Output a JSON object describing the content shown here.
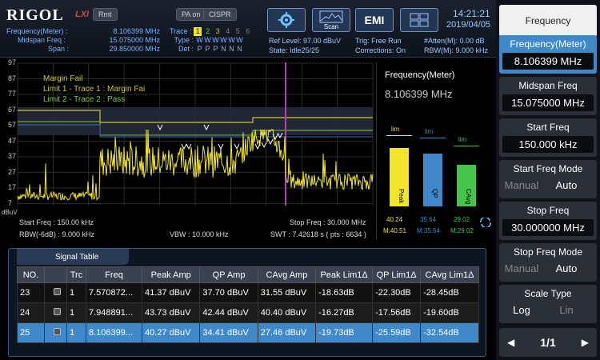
{
  "brand": {
    "name": "RIGOL",
    "sub": "LXI"
  },
  "header": {
    "rmt": "Rmt",
    "pa": "PA on",
    "cispr": "CISPR",
    "scan_label": "Scan",
    "emi_label": "EMI",
    "time": "14:21:21",
    "date": "2019/04/05"
  },
  "markers": {
    "freq_meter_label": "Frequency(Meter) :",
    "freq_meter": "8.106399 MHz",
    "midspan_label": "Midspan Freq :",
    "midspan": "15.075000 MHz",
    "span_label": "Span :",
    "span": "29.850000 MHz"
  },
  "trace": {
    "trace_label": "Trace :",
    "trace_nums": [
      "1",
      "2",
      "3",
      "4",
      "5",
      "6"
    ],
    "type_label": "Type :",
    "types": [
      "W",
      "W",
      "W",
      "W",
      "W",
      "W"
    ],
    "det_label": "Det :",
    "dets": [
      "P",
      "P",
      "P",
      "N",
      "N",
      "N"
    ]
  },
  "status": {
    "ref_level": "Ref Level: 97.00 dBuV",
    "state": "State: Idle25/25",
    "trig": "Trig: Free Run",
    "corrections": "Corrections: On",
    "atten": "#Atten(M): 0.00 dB",
    "rbw": "RBW(M): 9.000 kHz"
  },
  "plot": {
    "y_ticks": [
      "97",
      "87",
      "77",
      "67",
      "57",
      "47",
      "37",
      "27",
      "17",
      "7"
    ],
    "y_unit": "dBuV",
    "legend": [
      "Margin Fail",
      "Limit 1 - Trace 1 : Margin Fai",
      "Limit 2 - Trace 2 : Pass"
    ],
    "start_freq": "Start Freq : 150.00 kHz",
    "stop_freq": "Stop Freq : 30.000 MHz",
    "rbw": "RBW(-6dB) : 9.000 kHz",
    "vbw": "VBW : 10.000 kHz",
    "swt": "SWT : 7.42618 s ( pts : 6634 )",
    "colors": {
      "trace": "#f2e62a",
      "limit1": "#c8c830",
      "limit2": "#7ccf3a"
    }
  },
  "meter": {
    "title": "Frequency(Meter)",
    "value": "8.106399 MHz",
    "bars": [
      {
        "name": "Peak",
        "value": "40.24",
        "max": "M:40.51",
        "level": 0.52,
        "color": "#f2e62a"
      },
      {
        "name": "QP",
        "value": "35.64",
        "max": "M:35.64",
        "level": 0.47,
        "color": "#3f88c9"
      },
      {
        "name": "CAvg",
        "value": "29.02",
        "max": "M:29.02",
        "level": 0.37,
        "color": "#44c44a"
      }
    ],
    "lim_label": "lim"
  },
  "table": {
    "title": "Signal Table",
    "columns": [
      "NO.",
      "",
      "Trc",
      "Freq",
      "Peak Amp",
      "QP Amp",
      "CAvg Amp",
      "Peak Lim1Δ",
      "QP Lim1Δ",
      "CAvg Lim1Δ"
    ],
    "rows": [
      {
        "no": "23",
        "trc": "1",
        "freq": "7.570872...",
        "peak": "41.37 dBuV",
        "qp": "37.70 dBuV",
        "cavg": "31.55 dBuV",
        "pl": "-18.63dB",
        "ql": "-22.30dB",
        "cl": "-28.45dB"
      },
      {
        "no": "24",
        "trc": "1",
        "freq": "7.948891...",
        "peak": "43.73 dBuV",
        "qp": "42.44 dBuV",
        "cavg": "40.40 dBuV",
        "pl": "-16.27dB",
        "ql": "-17.56dB",
        "cl": "-19.60dB"
      },
      {
        "no": "25",
        "trc": "1",
        "freq": "8.106399...",
        "peak": "40.27 dBuV",
        "qp": "34.41 dBuV",
        "cavg": "27.46 dBuV",
        "pl": "-19.73dB",
        "ql": "-25.59dB",
        "cl": "-32.54dB"
      }
    ]
  },
  "side": {
    "title": "Frequency",
    "freq_meter_label": "Frequency(Meter)",
    "freq_meter_value": "8.106399 MHz",
    "midspan_label": "Midspan Freq",
    "midspan_value": "15.075000 MHz",
    "start_label": "Start Freq",
    "start_value": "150.000 kHz",
    "start_mode_label": "Start Freq Mode",
    "start_mode_manual": "Manual",
    "start_mode_auto": "Auto",
    "stop_label": "Stop Freq",
    "stop_value": "30.000000 MHz",
    "stop_mode_label": "Stop Freq Mode",
    "stop_mode_manual": "Manual",
    "stop_mode_auto": "Auto",
    "scale_label": "Scale Type",
    "scale_log": "Log",
    "scale_lin": "Lin",
    "page": "1/1"
  }
}
